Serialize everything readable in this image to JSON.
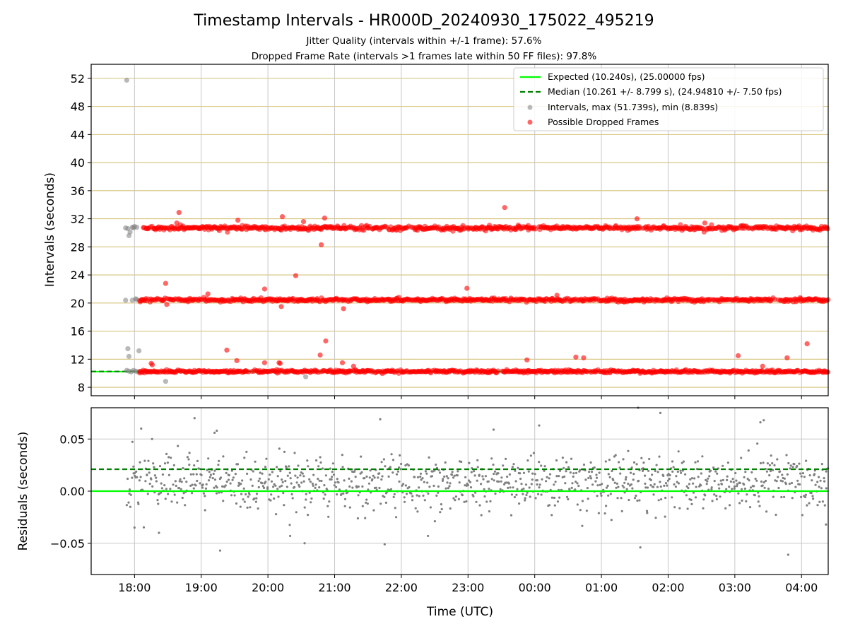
{
  "chart_data": [
    {
      "type": "scatter",
      "title": "Timestamp Intervals - HR000D_20240930_175022_495219",
      "subtitle_lines": [
        "Jitter Quality (intervals within +/-1 frame): 57.6%",
        "Dropped Frame Rate (intervals >1 frames late within 50 FF files): 97.8%"
      ],
      "xlabel": "",
      "ylabel": "Intervals (seconds)",
      "x_unit": "time (UTC)",
      "xlim": [
        "17:21",
        "04:24"
      ],
      "ylim": [
        6.8,
        54
      ],
      "yticks": [
        8,
        12,
        16,
        20,
        24,
        28,
        32,
        36,
        40,
        44,
        48,
        52
      ],
      "xtick_labels": [
        "18:00",
        "19:00",
        "20:00",
        "21:00",
        "22:00",
        "23:00",
        "00:00",
        "01:00",
        "02:00",
        "03:00",
        "04:00"
      ],
      "grid": true,
      "legend_position": "top-right",
      "legend": [
        "Expected (10.240s), (25.00000 fps)",
        "Median (10.261 +/- 8.799 s), (24.94810 +/- 7.50 fps)",
        "Intervals, max (51.739s), min (8.839s)",
        "Possible Dropped Frames"
      ],
      "expected_interval": 10.24,
      "median_interval": 10.261,
      "series": [
        {
          "name": "Intervals, max (51.739s), min (8.839s)",
          "color": "#808080",
          "points": [
            [
              "17:53",
              51.74
            ],
            [
              "17:52",
              30.7
            ],
            [
              "17:54",
              30.6
            ],
            [
              "17:55",
              29.6
            ],
            [
              "17:56",
              30.1
            ],
            [
              "17:58",
              30.8
            ],
            [
              "17:59",
              30.7
            ],
            [
              "18:00",
              30.9
            ],
            [
              "18:02",
              30.8
            ],
            [
              "17:52",
              20.4
            ],
            [
              "17:58",
              20.4
            ],
            [
              "18:01",
              20.6
            ],
            [
              "18:02",
              20.5
            ],
            [
              "17:54",
              13.5
            ],
            [
              "17:55",
              12.4
            ],
            [
              "18:04",
              13.2
            ],
            [
              "17:53",
              10.4
            ],
            [
              "17:55",
              10.3
            ],
            [
              "17:57",
              10.2
            ],
            [
              "17:59",
              10.4
            ],
            [
              "18:01",
              10.3
            ],
            [
              "18:03",
              10.2
            ],
            [
              "18:28",
              8.84
            ],
            [
              "20:34",
              9.5
            ]
          ]
        },
        {
          "name": "Possible Dropped Frames",
          "color": "#ff0000",
          "bands": [
            {
              "from": "18:06",
              "to": "04:24",
              "y": 30.7,
              "spread": 0.15
            },
            {
              "from": "18:04",
              "to": "04:24",
              "y": 20.45,
              "spread": 0.12
            },
            {
              "from": "18:04",
              "to": "04:24",
              "y": 10.25,
              "spread": 0.1
            }
          ],
          "outliers": [
            [
              "18:40",
              32.9
            ],
            [
              "18:38",
              31.4
            ],
            [
              "19:33",
              31.8
            ],
            [
              "20:13",
              32.3
            ],
            [
              "20:32",
              31.6
            ],
            [
              "20:51",
              32.1
            ],
            [
              "23:33",
              33.6
            ],
            [
              "01:32",
              32.0
            ],
            [
              "02:33",
              31.4
            ],
            [
              "20:48",
              28.3
            ],
            [
              "18:28",
              22.8
            ],
            [
              "18:29",
              19.8
            ],
            [
              "19:06",
              21.3
            ],
            [
              "19:57",
              22.0
            ],
            [
              "20:12",
              19.5
            ],
            [
              "20:25",
              23.9
            ],
            [
              "21:08",
              19.2
            ],
            [
              "22:59",
              22.1
            ],
            [
              "00:20",
              21.1
            ],
            [
              "18:15",
              11.4
            ],
            [
              "18:16",
              11.2
            ],
            [
              "19:23",
              13.3
            ],
            [
              "19:32",
              11.8
            ],
            [
              "19:57",
              11.5
            ],
            [
              "20:10",
              11.5
            ],
            [
              "20:11",
              11.4
            ],
            [
              "20:47",
              12.6
            ],
            [
              "20:52",
              14.6
            ],
            [
              "21:07",
              11.5
            ],
            [
              "21:17",
              11.0
            ],
            [
              "23:53",
              11.9
            ],
            [
              "00:37",
              12.3
            ],
            [
              "00:44",
              12.2
            ],
            [
              "03:03",
              12.5
            ],
            [
              "03:25",
              11.0
            ],
            [
              "03:47",
              12.2
            ],
            [
              "04:05",
              14.2
            ]
          ]
        }
      ]
    },
    {
      "type": "scatter",
      "xlabel": "Time (UTC)",
      "ylabel": "Residuals (seconds)",
      "xlim": [
        "17:21",
        "04:24"
      ],
      "ylim": [
        -0.08,
        0.08
      ],
      "yticks": [
        -0.05,
        0.0,
        0.05
      ],
      "ytick_labels": [
        "−0.05",
        "0.00",
        "0.05"
      ],
      "xtick_labels": [
        "18:00",
        "19:00",
        "20:00",
        "21:00",
        "22:00",
        "23:00",
        "00:00",
        "01:00",
        "02:00",
        "03:00",
        "04:00"
      ],
      "grid": true,
      "zero_line": 0.0,
      "median_residual": 0.021,
      "residual_cloud": {
        "from": "17:53",
        "to": "04:24",
        "center": 0.007,
        "std": 0.013,
        "color": "#808080"
      },
      "outliers": [
        [
          "18:06",
          0.06
        ],
        [
          "18:54",
          0.07
        ],
        [
          "19:12",
          0.056
        ],
        [
          "19:14",
          0.058
        ],
        [
          "19:17",
          -0.057
        ],
        [
          "21:41",
          0.069
        ],
        [
          "21:45",
          -0.051
        ],
        [
          "22:24",
          -0.043
        ],
        [
          "23:23",
          0.059
        ],
        [
          "00:04",
          0.063
        ],
        [
          "01:33",
          0.08
        ],
        [
          "01:35",
          -0.054
        ],
        [
          "01:53",
          0.075
        ],
        [
          "03:23",
          0.066
        ],
        [
          "03:26",
          0.068
        ],
        [
          "03:48",
          -0.061
        ],
        [
          "04:22",
          -0.032
        ],
        [
          "18:00",
          -0.035
        ],
        [
          "18:22",
          -0.04
        ],
        [
          "20:20",
          -0.043
        ],
        [
          "20:33",
          -0.05
        ]
      ]
    }
  ],
  "colors": {
    "expected": "#00ff00",
    "median": "#008000",
    "intervals": "#808080",
    "dropped": "#ff0000",
    "hgrid_top": "#d4c27a",
    "grid": "#c8c8c8"
  }
}
